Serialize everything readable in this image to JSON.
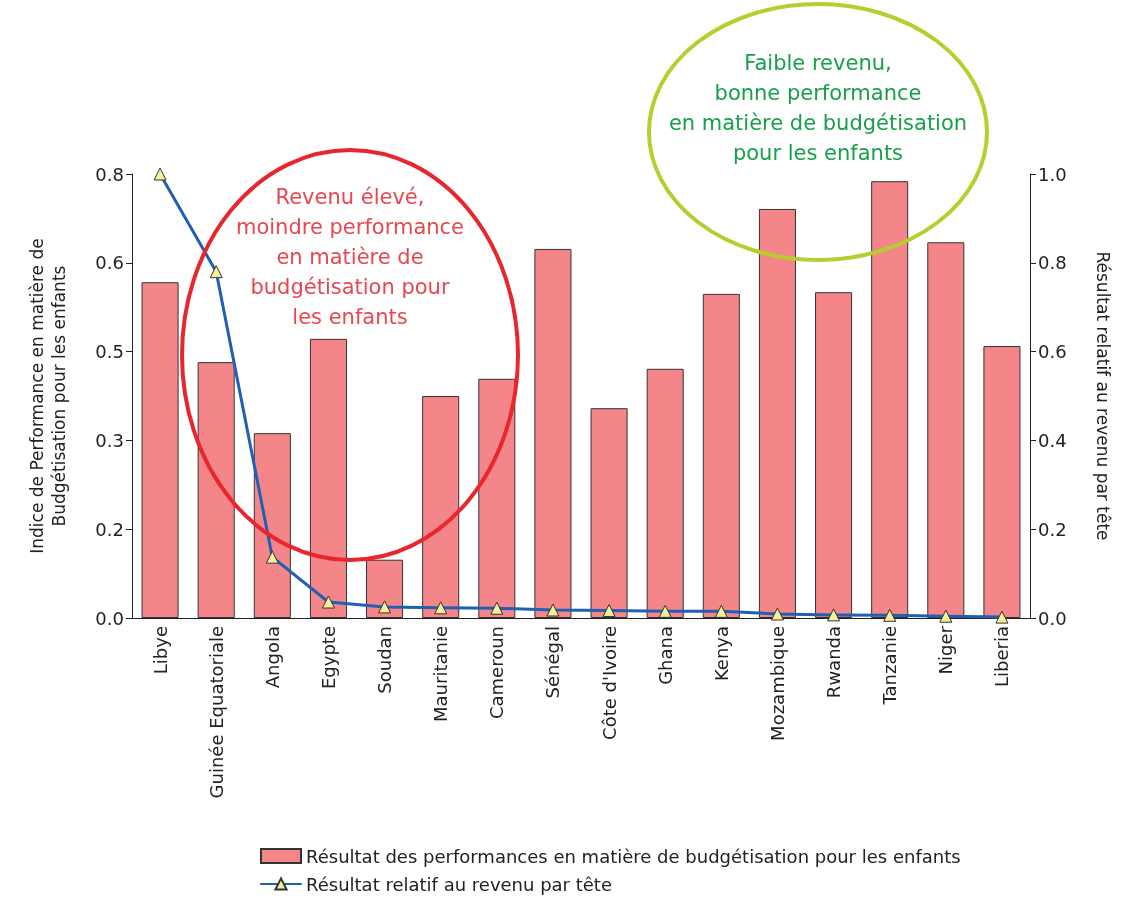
{
  "chart_data": {
    "type": "bar",
    "categories": [
      "Libye",
      "Guinée Equatoriale",
      "Angola",
      "Egypte",
      "Soudan",
      "Mauritanie",
      "Cameroun",
      "Sénégal",
      "Côte d'Ivoire",
      "Ghana",
      "Kenya",
      "Mozambique",
      "Rwanda",
      "Tanzanie",
      "Niger",
      "Liberia"
    ],
    "series": [
      {
        "name": "Résultat des performances en matière de budgétisation pour les enfants",
        "color": "#f4868a",
        "values": [
          0.605,
          0.461,
          0.333,
          0.503,
          0.105,
          0.4,
          0.431,
          0.665,
          0.378,
          0.449,
          0.584,
          0.737,
          0.587,
          0.787,
          0.677,
          0.49
        ]
      },
      {
        "name": "Résultat relatif au revenu par tête",
        "type": "line",
        "axis": "y2",
        "color": "#1f5fb4",
        "values": [
          1.0,
          0.78,
          0.137,
          0.036,
          0.025,
          0.023,
          0.022,
          0.018,
          0.017,
          0.015,
          0.015,
          0.009,
          0.007,
          0.006,
          0.004,
          0.002
        ]
      }
    ],
    "ylabel": "Indice de Performance en matière de\nBudgétisation pour les enfants",
    "y2label": "Résultat relatif au revenu par tête",
    "ylim": [
      0,
      0.8
    ],
    "yticks": [
      {
        "value": 0,
        "label": "0.0"
      },
      {
        "value": 0.16,
        "label": "0.2"
      },
      {
        "value": 0.32,
        "label": "0.3"
      },
      {
        "value": 0.48,
        "label": "0.5"
      },
      {
        "value": 0.64,
        "label": "0.6"
      },
      {
        "value": 0.8,
        "label": "0.8"
      }
    ],
    "y2lim": [
      0,
      1.0
    ],
    "y2ticks": [
      {
        "value": 0,
        "label": "0.0"
      },
      {
        "value": 0.2,
        "label": "0.2"
      },
      {
        "value": 0.4,
        "label": "0.4"
      },
      {
        "value": 0.6,
        "label": "0.6"
      },
      {
        "value": 0.8,
        "label": "0.8"
      },
      {
        "value": 1.0,
        "label": "1.0"
      }
    ],
    "annotations": [
      "Revenu élevé,\nmoindre performance\nen matière de\nbudgétisation pour\nles enfants",
      "Faible revenu,\nbonne performance\nen matière de budgétisation\npour les enfants"
    ],
    "marker": "triangle",
    "line_style": "solid",
    "grid": false,
    "legend": "bottom"
  }
}
